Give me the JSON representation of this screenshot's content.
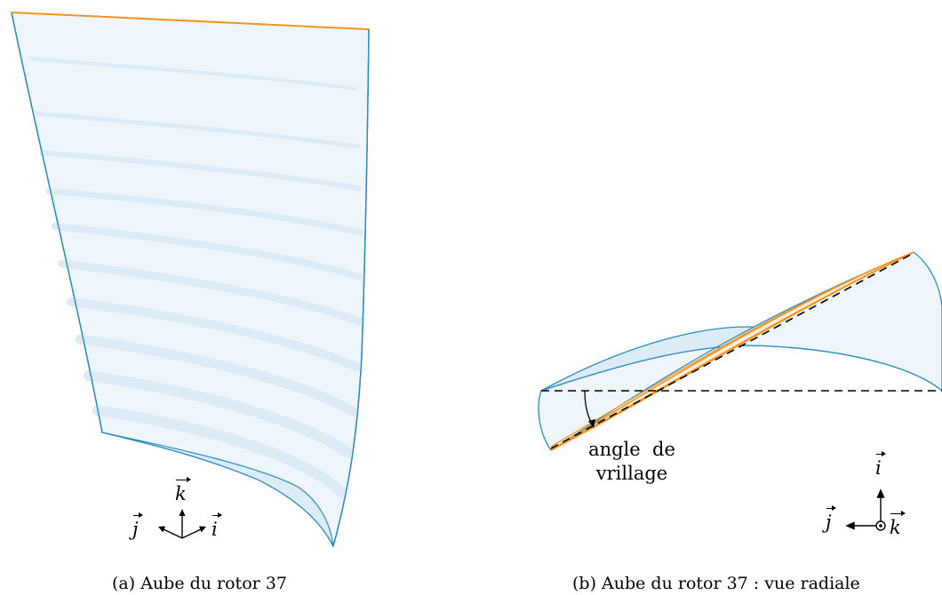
{
  "panel_a": {
    "caption": "(a) Aube du rotor 37",
    "axes": {
      "k": "k",
      "j": "j",
      "i": "i"
    }
  },
  "panel_b": {
    "caption": "(b) Aube du rotor 37 : vue radiale",
    "annotation_line1": "angle  de",
    "annotation_line2": "vrillage",
    "axes": {
      "i": "i",
      "j": "j",
      "k": "k"
    }
  },
  "colors": {
    "blade_fill": "#eef6fb",
    "blade_stroke": "#2b8cbe",
    "blade_band": "#dcebf5",
    "tip_orange": "#f4931e",
    "section_fill": "#fbeee2"
  }
}
